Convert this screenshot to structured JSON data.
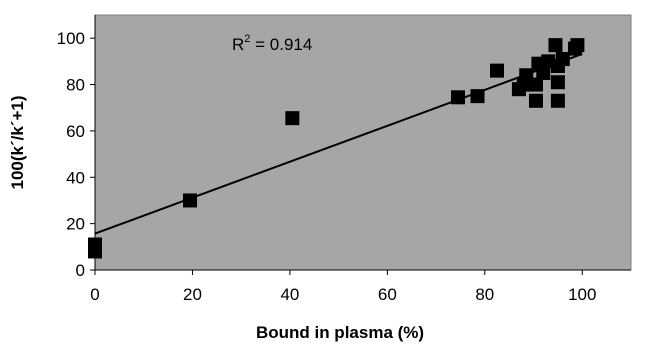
{
  "chart_data": {
    "type": "scatter",
    "xlabel": "Bound in plasma (%)",
    "ylabel": "100(k´/k´+1)",
    "xlim": [
      0,
      110
    ],
    "ylim": [
      0,
      110
    ],
    "x_ticks": [
      "0",
      "20",
      "40",
      "60",
      "80",
      "100"
    ],
    "y_ticks": [
      "0",
      "20",
      "40",
      "60",
      "80",
      "100"
    ],
    "grid": false,
    "legend": "none",
    "annotation": {
      "base": "R",
      "sup": "2",
      "rest": " = 0.914"
    },
    "trendline": {
      "x": [
        0,
        100
      ],
      "y": [
        15.7,
        93.2
      ]
    },
    "points": [
      {
        "x": 0,
        "y": 8
      },
      {
        "x": 0,
        "y": 11
      },
      {
        "x": 19.5,
        "y": 30
      },
      {
        "x": 40.5,
        "y": 65.5
      },
      {
        "x": 74.5,
        "y": 74.5
      },
      {
        "x": 78.5,
        "y": 75
      },
      {
        "x": 82.5,
        "y": 86
      },
      {
        "x": 87,
        "y": 78
      },
      {
        "x": 88,
        "y": 80
      },
      {
        "x": 88.5,
        "y": 84
      },
      {
        "x": 90.5,
        "y": 73
      },
      {
        "x": 90.5,
        "y": 80
      },
      {
        "x": 91,
        "y": 89
      },
      {
        "x": 92,
        "y": 85
      },
      {
        "x": 93,
        "y": 90
      },
      {
        "x": 94.5,
        "y": 97
      },
      {
        "x": 95,
        "y": 73
      },
      {
        "x": 95,
        "y": 81
      },
      {
        "x": 95,
        "y": 88
      },
      {
        "x": 96,
        "y": 91
      },
      {
        "x": 98.5,
        "y": 95.5
      },
      {
        "x": 99,
        "y": 97
      }
    ],
    "colors": {
      "plot_bg": "#a6a6a6",
      "marker": "#000000",
      "line": "#000000"
    }
  }
}
